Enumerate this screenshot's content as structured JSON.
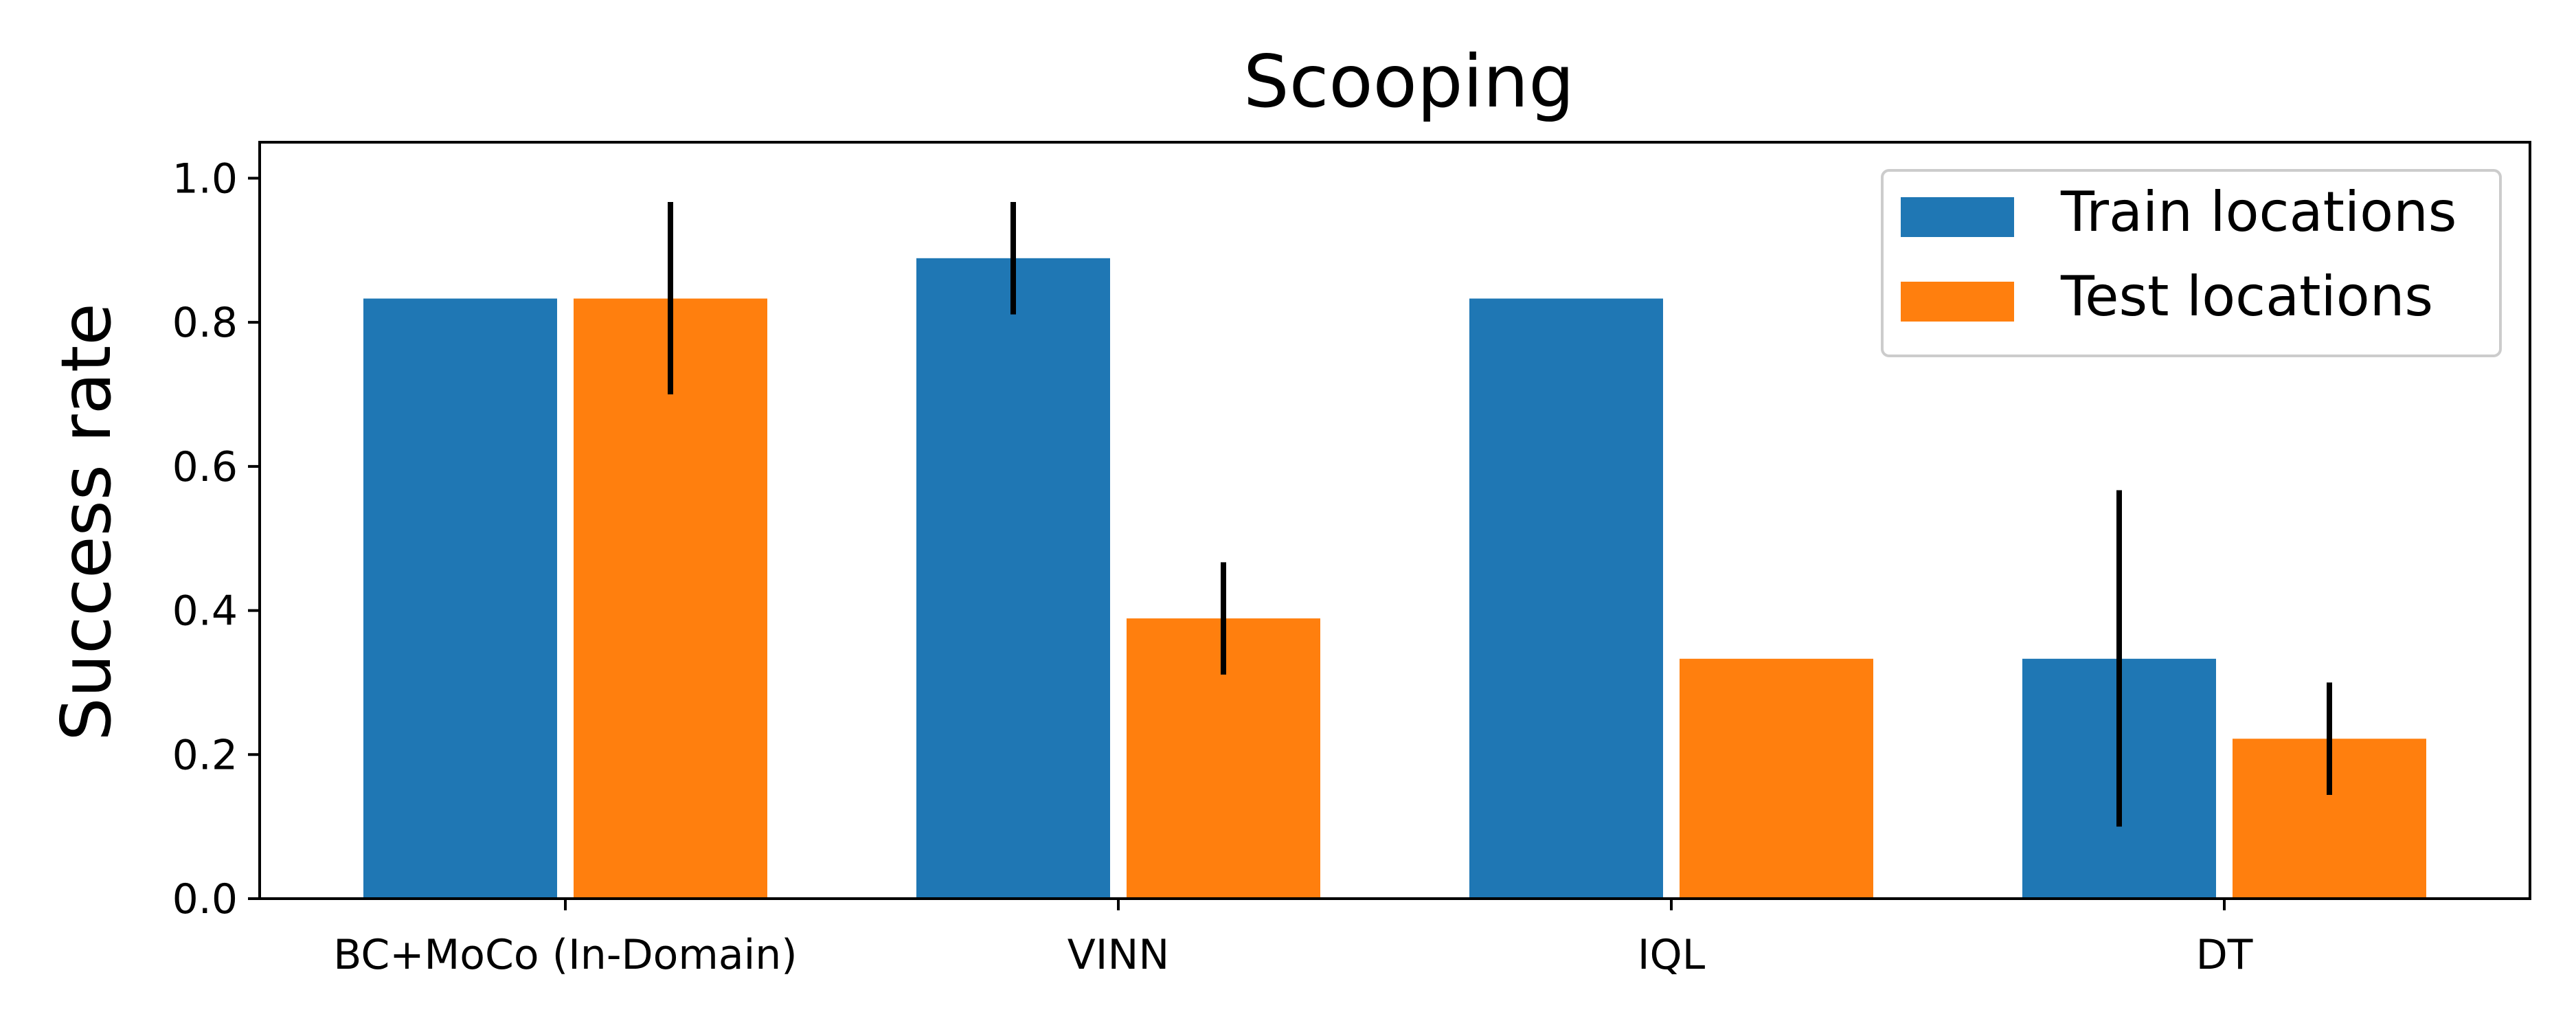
{
  "chart_data": {
    "type": "bar",
    "title": "Scooping",
    "xlabel": "",
    "ylabel": "Success rate",
    "categories": [
      "BC+MoCo (In-Domain)",
      "VINN",
      "IQL",
      "DT"
    ],
    "series": [
      {
        "name": "Train locations",
        "color": "#1f77b4",
        "values": [
          0.833,
          0.889,
          0.833,
          0.333
        ],
        "error_low": [
          null,
          0.811,
          null,
          0.1
        ],
        "error_high": [
          null,
          0.967,
          null,
          0.567
        ]
      },
      {
        "name": "Test locations",
        "color": "#ff7f0e",
        "values": [
          0.833,
          0.389,
          0.333,
          0.222
        ],
        "error_low": [
          0.7,
          0.311,
          null,
          0.144
        ],
        "error_high": [
          0.967,
          0.467,
          null,
          0.3
        ]
      }
    ],
    "yticks": [
      "0.0",
      "0.2",
      "0.4",
      "0.6",
      "0.8",
      "1.0"
    ],
    "ylim": [
      0,
      1.05
    ],
    "grid": false,
    "legend_position": "top-right"
  }
}
